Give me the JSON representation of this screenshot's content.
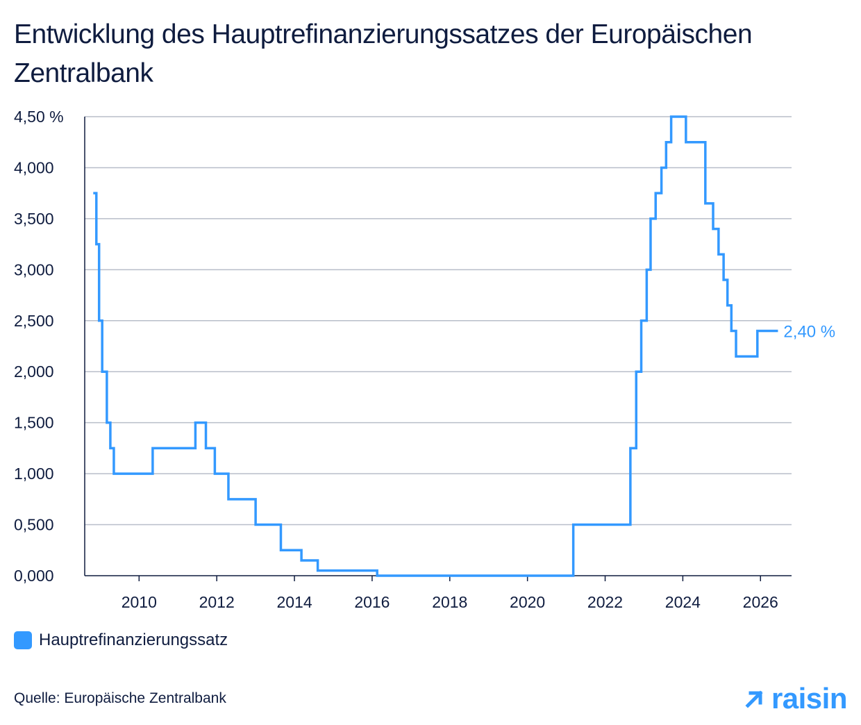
{
  "title": "Entwicklung des Hauptrefinanzierungssatzes der Europäischen Zentralbank",
  "legend_label": "Hauptrefinanzierungssatz",
  "source": "Quelle: Europäische Zentralbank",
  "brand": "raisin",
  "colors": {
    "series": "#3399ff",
    "text": "#0f1c3f",
    "grid": "#b8bec9",
    "axis": "#0f1c3f"
  },
  "chart_data": {
    "type": "line",
    "step": true,
    "xlabel": "",
    "ylabel": "",
    "xlim": [
      2008.6,
      2026.8
    ],
    "ylim": [
      0,
      4.5
    ],
    "x_ticks": [
      "2010",
      "2012",
      "2014",
      "2016",
      "2018",
      "2020",
      "2022",
      "2024",
      "2026"
    ],
    "y_ticks": [
      "0,000",
      "0,500",
      "1,000",
      "1,500",
      "2,000",
      "2,500",
      "3,000",
      "3,500",
      "4,000",
      "4,50 %"
    ],
    "grid": true,
    "end_label": "2,40 %",
    "series": [
      {
        "name": "Hauptrefinanzierungssatz",
        "x": [
          2008.82,
          2008.9,
          2008.97,
          2009.05,
          2009.17,
          2009.26,
          2009.35,
          2010.35,
          2011.45,
          2011.72,
          2011.95,
          2012.3,
          2013.0,
          2013.65,
          2014.18,
          2014.6,
          2016.13,
          2021.18,
          2022.65,
          2022.8,
          2022.93,
          2023.07,
          2023.17,
          2023.3,
          2023.45,
          2023.57,
          2023.7,
          2024.08,
          2024.58,
          2024.78,
          2024.92,
          2025.05,
          2025.15,
          2025.25,
          2025.37,
          2025.92,
          2026.45
        ],
        "y": [
          3.75,
          3.25,
          2.5,
          2.0,
          1.5,
          1.25,
          1.0,
          1.25,
          1.5,
          1.25,
          1.0,
          0.75,
          0.5,
          0.25,
          0.15,
          0.05,
          0.0,
          0.5,
          1.25,
          2.0,
          2.5,
          3.0,
          3.5,
          3.75,
          4.0,
          4.25,
          4.5,
          4.25,
          3.65,
          3.4,
          3.15,
          2.9,
          2.65,
          2.4,
          2.15,
          2.4,
          2.4
        ]
      }
    ]
  }
}
